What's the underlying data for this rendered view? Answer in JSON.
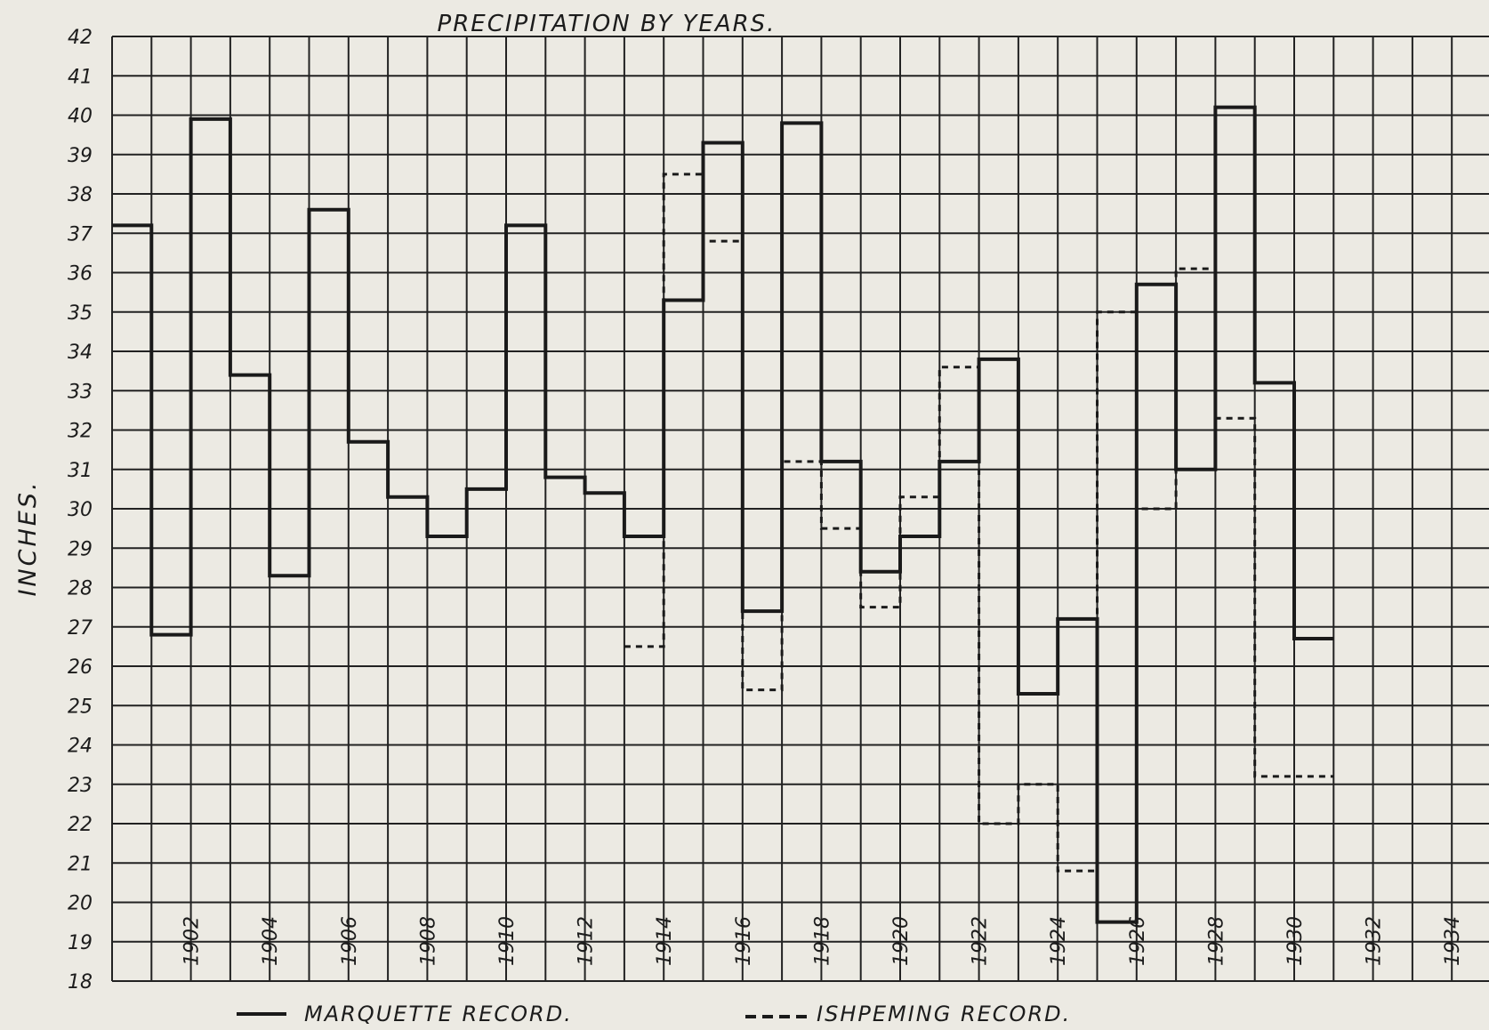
{
  "chart_data": {
    "type": "line",
    "step": true,
    "title": "PRECIPITATION BY YEARS.",
    "xlabel": "",
    "ylabel": "INCHES.",
    "ylim": [
      18,
      42
    ],
    "yticks": [
      18,
      19,
      20,
      21,
      22,
      23,
      24,
      25,
      26,
      27,
      28,
      29,
      30,
      31,
      32,
      33,
      34,
      35,
      36,
      37,
      38,
      39,
      40,
      41,
      42
    ],
    "xlim": [
      1900,
      1935
    ],
    "xticks": [
      1902,
      1904,
      1906,
      1908,
      1910,
      1912,
      1914,
      1916,
      1918,
      1920,
      1922,
      1924,
      1926,
      1928,
      1930,
      1932,
      1934
    ],
    "grid": true,
    "legend_position": "bottom",
    "series": [
      {
        "name": "MARQUETTE RECORD.",
        "style": "solid",
        "x": [
          1900,
          1901,
          1902,
          1903,
          1904,
          1905,
          1906,
          1907,
          1908,
          1909,
          1910,
          1911,
          1912,
          1913,
          1914,
          1915,
          1916,
          1917,
          1918,
          1919,
          1920,
          1921,
          1922,
          1923,
          1924,
          1925,
          1926,
          1927,
          1928,
          1929,
          1930
        ],
        "values": [
          37.2,
          26.8,
          39.9,
          33.4,
          28.3,
          37.6,
          31.7,
          30.3,
          29.3,
          30.5,
          37.2,
          30.8,
          30.4,
          29.3,
          35.3,
          39.3,
          27.4,
          39.8,
          31.2,
          28.4,
          29.3,
          31.2,
          33.8,
          25.3,
          27.2,
          19.5,
          35.7,
          31.0,
          40.2,
          33.2,
          26.7
        ]
      },
      {
        "name": "ISHPEMING RECORD.",
        "style": "dashed",
        "x": [
          1913,
          1914,
          1915,
          1916,
          1917,
          1918,
          1919,
          1920,
          1921,
          1922,
          1923,
          1924,
          1925,
          1926,
          1927,
          1928,
          1929,
          1930
        ],
        "values": [
          26.5,
          38.5,
          36.8,
          25.4,
          31.2,
          29.5,
          27.5,
          30.3,
          33.6,
          22.0,
          23.0,
          20.8,
          35.0,
          30.0,
          36.1,
          32.3,
          23.2,
          23.2
        ]
      }
    ]
  },
  "legend": {
    "solid_label": "MARQUETTE RECORD.",
    "dashed_label": "ISHPEMING RECORD."
  }
}
